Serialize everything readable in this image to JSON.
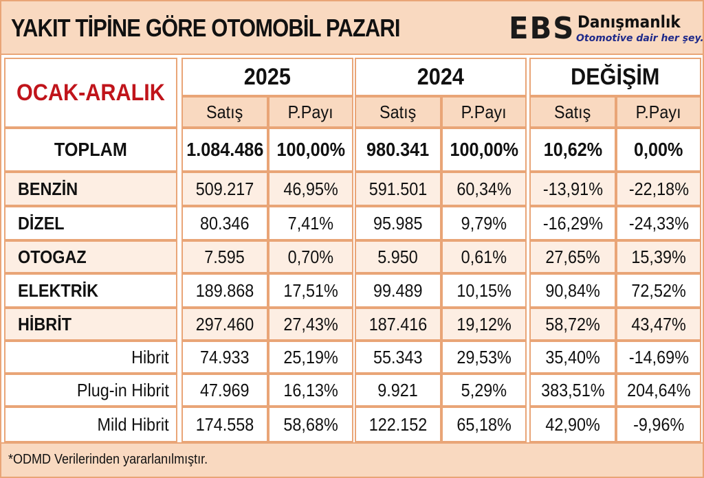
{
  "header": {
    "title": "YAKIT TİPİNE GÖRE OTOMOBİL PAZARI",
    "logo_main": "EBS",
    "logo_name": "Danışmanlık",
    "logo_tagline": "Otomotive dair her şey..."
  },
  "table": {
    "period_label": "OCAK-ARALIK",
    "group_2025": "2025",
    "group_2024": "2024",
    "group_change": "DEĞİŞİM",
    "col_sales": "Satış",
    "col_share": "P.Payı",
    "rows": [
      {
        "label": "TOPLAM",
        "s25": "1.084.486",
        "p25": "100,00%",
        "s24": "980.341",
        "p24": "100,00%",
        "ds": "10,62%",
        "dp": "0,00%"
      },
      {
        "label": "BENZİN",
        "s25": "509.217",
        "p25": "46,95%",
        "s24": "591.501",
        "p24": "60,34%",
        "ds": "-13,91%",
        "dp": "-22,18%"
      },
      {
        "label": "DİZEL",
        "s25": "80.346",
        "p25": "7,41%",
        "s24": "95.985",
        "p24": "9,79%",
        "ds": "-16,29%",
        "dp": "-24,33%"
      },
      {
        "label": "OTOGAZ",
        "s25": "7.595",
        "p25": "0,70%",
        "s24": "5.950",
        "p24": "0,61%",
        "ds": "27,65%",
        "dp": "15,39%"
      },
      {
        "label": "ELEKTRİK",
        "s25": "189.868",
        "p25": "17,51%",
        "s24": "99.489",
        "p24": "10,15%",
        "ds": "90,84%",
        "dp": "72,52%"
      },
      {
        "label": "HİBRİT",
        "s25": "297.460",
        "p25": "27,43%",
        "s24": "187.416",
        "p24": "19,12%",
        "ds": "58,72%",
        "dp": "43,47%"
      },
      {
        "label": "Hibrit",
        "s25": "74.933",
        "p25": "25,19%",
        "s24": "55.343",
        "p24": "29,53%",
        "ds": "35,40%",
        "dp": "-14,69%"
      },
      {
        "label": "Plug-in Hibrit",
        "s25": "47.969",
        "p25": "16,13%",
        "s24": "9.921",
        "p24": "5,29%",
        "ds": "383,51%",
        "dp": "204,64%"
      },
      {
        "label": "Mild Hibrit",
        "s25": "174.558",
        "p25": "58,68%",
        "s24": "122.152",
        "p24": "65,18%",
        "ds": "42,90%",
        "dp": "-9,96%"
      }
    ]
  },
  "footer": {
    "note": "*ODMD Verilerinden yararlanılmıştır."
  },
  "colors": {
    "peach": "#f9d9c0",
    "light_peach": "#fdeee3",
    "border": "#e9a577",
    "accent_red": "#c0141b"
  }
}
